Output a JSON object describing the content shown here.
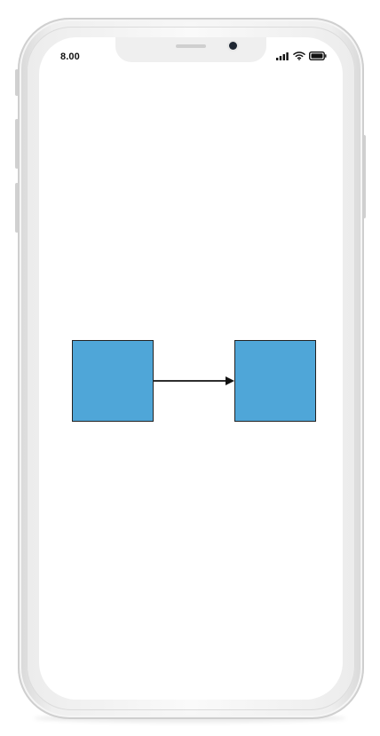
{
  "status_bar": {
    "time": "8.00",
    "signal_icon": "signal-icon",
    "wifi_icon": "wifi-icon",
    "battery_icon": "battery-icon"
  },
  "diagram": {
    "nodes": [
      {
        "id": "left-node",
        "fill": "#4fa6d8"
      },
      {
        "id": "right-node",
        "fill": "#4fa6d8"
      }
    ],
    "connector": {
      "from": "left-node",
      "to": "right-node",
      "color": "#111111",
      "arrow_icon": "arrow-right-icon"
    }
  }
}
